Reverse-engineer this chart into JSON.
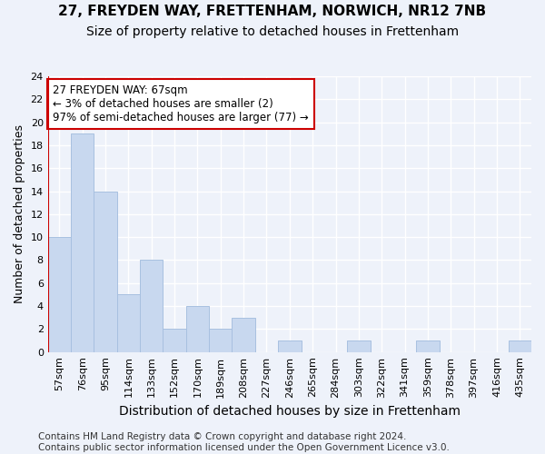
{
  "title1": "27, FREYDEN WAY, FRETTENHAM, NORWICH, NR12 7NB",
  "title2": "Size of property relative to detached houses in Frettenham",
  "xlabel": "Distribution of detached houses by size in Frettenham",
  "ylabel": "Number of detached properties",
  "categories": [
    "57sqm",
    "76sqm",
    "95sqm",
    "114sqm",
    "133sqm",
    "152sqm",
    "170sqm",
    "189sqm",
    "208sqm",
    "227sqm",
    "246sqm",
    "265sqm",
    "284sqm",
    "303sqm",
    "322sqm",
    "341sqm",
    "359sqm",
    "378sqm",
    "397sqm",
    "416sqm",
    "435sqm"
  ],
  "values": [
    10,
    19,
    14,
    5,
    8,
    2,
    4,
    2,
    3,
    0,
    1,
    0,
    0,
    1,
    0,
    0,
    1,
    0,
    0,
    0,
    1
  ],
  "bar_color": "#c8d8ef",
  "bar_edge_color": "#a8c0e0",
  "vline_color": "#cc0000",
  "annotation_line1": "27 FREYDEN WAY: 67sqm",
  "annotation_line2": "← 3% of detached houses are smaller (2)",
  "annotation_line3": "97% of semi-detached houses are larger (77) →",
  "annotation_box_color": "white",
  "annotation_box_edge": "#cc0000",
  "ylim": [
    0,
    24
  ],
  "yticks": [
    0,
    2,
    4,
    6,
    8,
    10,
    12,
    14,
    16,
    18,
    20,
    22,
    24
  ],
  "footer": "Contains HM Land Registry data © Crown copyright and database right 2024.\nContains public sector information licensed under the Open Government Licence v3.0.",
  "background_color": "#eef2fa",
  "grid_color": "#ffffff",
  "title1_fontsize": 11,
  "title2_fontsize": 10,
  "ylabel_fontsize": 9,
  "xlabel_fontsize": 10,
  "tick_fontsize": 8,
  "annotation_fontsize": 8.5,
  "footer_fontsize": 7.5
}
